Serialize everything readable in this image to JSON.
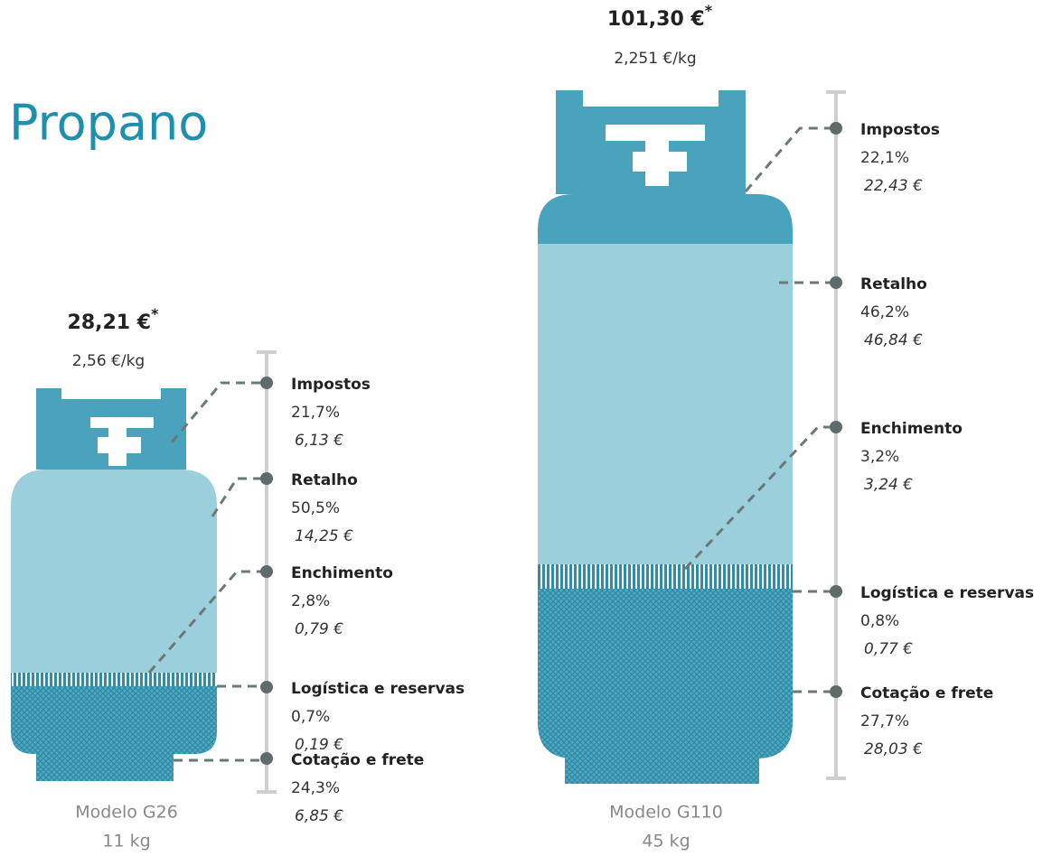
{
  "title": "Propano",
  "cylinders": [
    {
      "price": "28,21 €",
      "asterisk": "*",
      "per_kg": "2,56 €/kg",
      "model": "Modelo G26",
      "weight": "11 kg",
      "components": [
        {
          "name": "Impostos",
          "percent": "21,7%",
          "amount": "6,13 €"
        },
        {
          "name": "Retalho",
          "percent": "50,5%",
          "amount": "14,25 €"
        },
        {
          "name": "Enchimento",
          "percent": "2,8%",
          "amount": "0,79 €"
        },
        {
          "name": "Logística e reservas",
          "percent": "0,7%",
          "amount": "0,19 €"
        },
        {
          "name": "Cotação e frete",
          "percent": "24,3%",
          "amount": "6,85 €"
        }
      ]
    },
    {
      "price": "101,30 €",
      "asterisk": "*",
      "per_kg": "2,251 €/kg",
      "model": "Modelo G110",
      "weight": "45 kg",
      "components": [
        {
          "name": "Impostos",
          "percent": "22,1%",
          "amount": "22,43 €"
        },
        {
          "name": "Retalho",
          "percent": "46,2%",
          "amount": "46,84 €"
        },
        {
          "name": "Enchimento",
          "percent": "3,2%",
          "amount": "3,24 €"
        },
        {
          "name": "Logística e reservas",
          "percent": "0,8%",
          "amount": "0,77 €"
        },
        {
          "name": "Cotação e frete",
          "percent": "27,7%",
          "amount": "28,03 €"
        }
      ]
    }
  ]
}
